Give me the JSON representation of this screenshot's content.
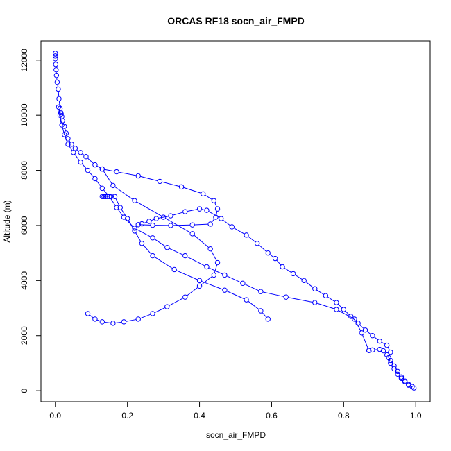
{
  "chart_data": {
    "type": "line",
    "title": "ORCAS RF18 socn_air_FMPD",
    "xlabel": "socn_air_FMPD",
    "ylabel": "Altitude (m)",
    "xlim": [
      -0.04,
      1.04
    ],
    "ylim": [
      -400,
      12700
    ],
    "xticks": [
      0.0,
      0.2,
      0.4,
      0.6,
      0.8,
      1.0
    ],
    "xtick_labels": [
      "0.0",
      "0.2",
      "0.4",
      "0.6",
      "0.8",
      "1.0"
    ],
    "yticks": [
      0,
      2000,
      4000,
      6000,
      8000,
      10000,
      12000
    ],
    "ytick_labels": [
      "0",
      "2000",
      "4000",
      "6000",
      "8000",
      "10000",
      "12000"
    ],
    "grid": false,
    "legend": "none",
    "series": [
      {
        "color": "#0000ff",
        "marker": "open-circle",
        "x": [
          0.0,
          0.0,
          0.0,
          0.001,
          0.002,
          0.003,
          0.005,
          0.008,
          0.01,
          0.013,
          0.015,
          0.016,
          0.018,
          0.02,
          0.025,
          0.03,
          0.035,
          0.045,
          0.055,
          0.07,
          0.085,
          0.11,
          0.13,
          0.17,
          0.23,
          0.29,
          0.35,
          0.41,
          0.44,
          0.45,
          0.445,
          0.43,
          0.38,
          0.32,
          0.27,
          0.23,
          0.24,
          0.26,
          0.28,
          0.32,
          0.36,
          0.4,
          0.42,
          0.46,
          0.49,
          0.53,
          0.56,
          0.59,
          0.61,
          0.63,
          0.66,
          0.69,
          0.72,
          0.75,
          0.78,
          0.8,
          0.82,
          0.84,
          0.86,
          0.88,
          0.9,
          0.92,
          0.93,
          0.925,
          0.93,
          0.94,
          0.95,
          0.96,
          0.97,
          0.98,
          0.99,
          0.995,
          0.98,
          0.97,
          0.96,
          0.95,
          0.94,
          0.93,
          0.92,
          0.91,
          0.9,
          0.88,
          0.87
        ],
        "y": [
          12250,
          12150,
          12050,
          11850,
          11650,
          11450,
          11200,
          10950,
          10600,
          10250,
          10100,
          10050,
          9950,
          9800,
          9600,
          9350,
          9150,
          8950,
          8800,
          8650,
          8500,
          8200,
          8050,
          7950,
          7800,
          7600,
          7400,
          7150,
          6900,
          6600,
          6300,
          6050,
          6020,
          6000,
          6010,
          6030,
          6060,
          6150,
          6250,
          6350,
          6500,
          6600,
          6550,
          6250,
          5950,
          5650,
          5350,
          5000,
          4800,
          4500,
          4250,
          4000,
          3700,
          3450,
          3200,
          2950,
          2700,
          2450,
          2200,
          2000,
          1800,
          1650,
          1400,
          1200,
          1000,
          800,
          600,
          450,
          320,
          230,
          150,
          100,
          200,
          350,
          500,
          700,
          900,
          1100,
          1300,
          1450,
          1500,
          1480,
          1460
        ]
      },
      {
        "color": "#0000ff",
        "marker": "open-circle",
        "x": [
          0.87,
          0.85,
          0.83,
          0.78,
          0.72,
          0.64,
          0.57,
          0.52,
          0.47,
          0.42,
          0.36,
          0.31,
          0.27,
          0.22,
          0.19,
          0.17,
          0.15,
          0.13,
          0.11,
          0.09,
          0.07,
          0.05,
          0.035,
          0.025,
          0.018,
          0.013,
          0.009
        ],
        "y": [
          1460,
          2100,
          2600,
          2950,
          3200,
          3400,
          3600,
          3900,
          4200,
          4500,
          4900,
          5200,
          5550,
          5900,
          6300,
          6650,
          7050,
          7350,
          7700,
          8000,
          8300,
          8650,
          8950,
          9300,
          9650,
          10000,
          10300
        ]
      },
      {
        "color": "#0000ff",
        "marker": "open-circle",
        "x": [
          0.13,
          0.16,
          0.22,
          0.3,
          0.38,
          0.43,
          0.45,
          0.44,
          0.4,
          0.36,
          0.31,
          0.27,
          0.23,
          0.19,
          0.16,
          0.13,
          0.11,
          0.09
        ],
        "y": [
          8050,
          7450,
          6900,
          6300,
          5700,
          5150,
          4650,
          4200,
          3800,
          3400,
          3050,
          2800,
          2600,
          2500,
          2450,
          2500,
          2600,
          2800
        ]
      },
      {
        "color": "#0000ff",
        "marker": "open-circle",
        "x": [
          0.59,
          0.57,
          0.53,
          0.47,
          0.4,
          0.33,
          0.27,
          0.24,
          0.22,
          0.2,
          0.18,
          0.165,
          0.155,
          0.145,
          0.14,
          0.135,
          0.13
        ],
        "y": [
          2600,
          2900,
          3300,
          3650,
          4000,
          4400,
          4900,
          5350,
          5800,
          6250,
          6650,
          7050,
          7050,
          7050,
          7050,
          7050,
          7050
        ]
      }
    ]
  }
}
